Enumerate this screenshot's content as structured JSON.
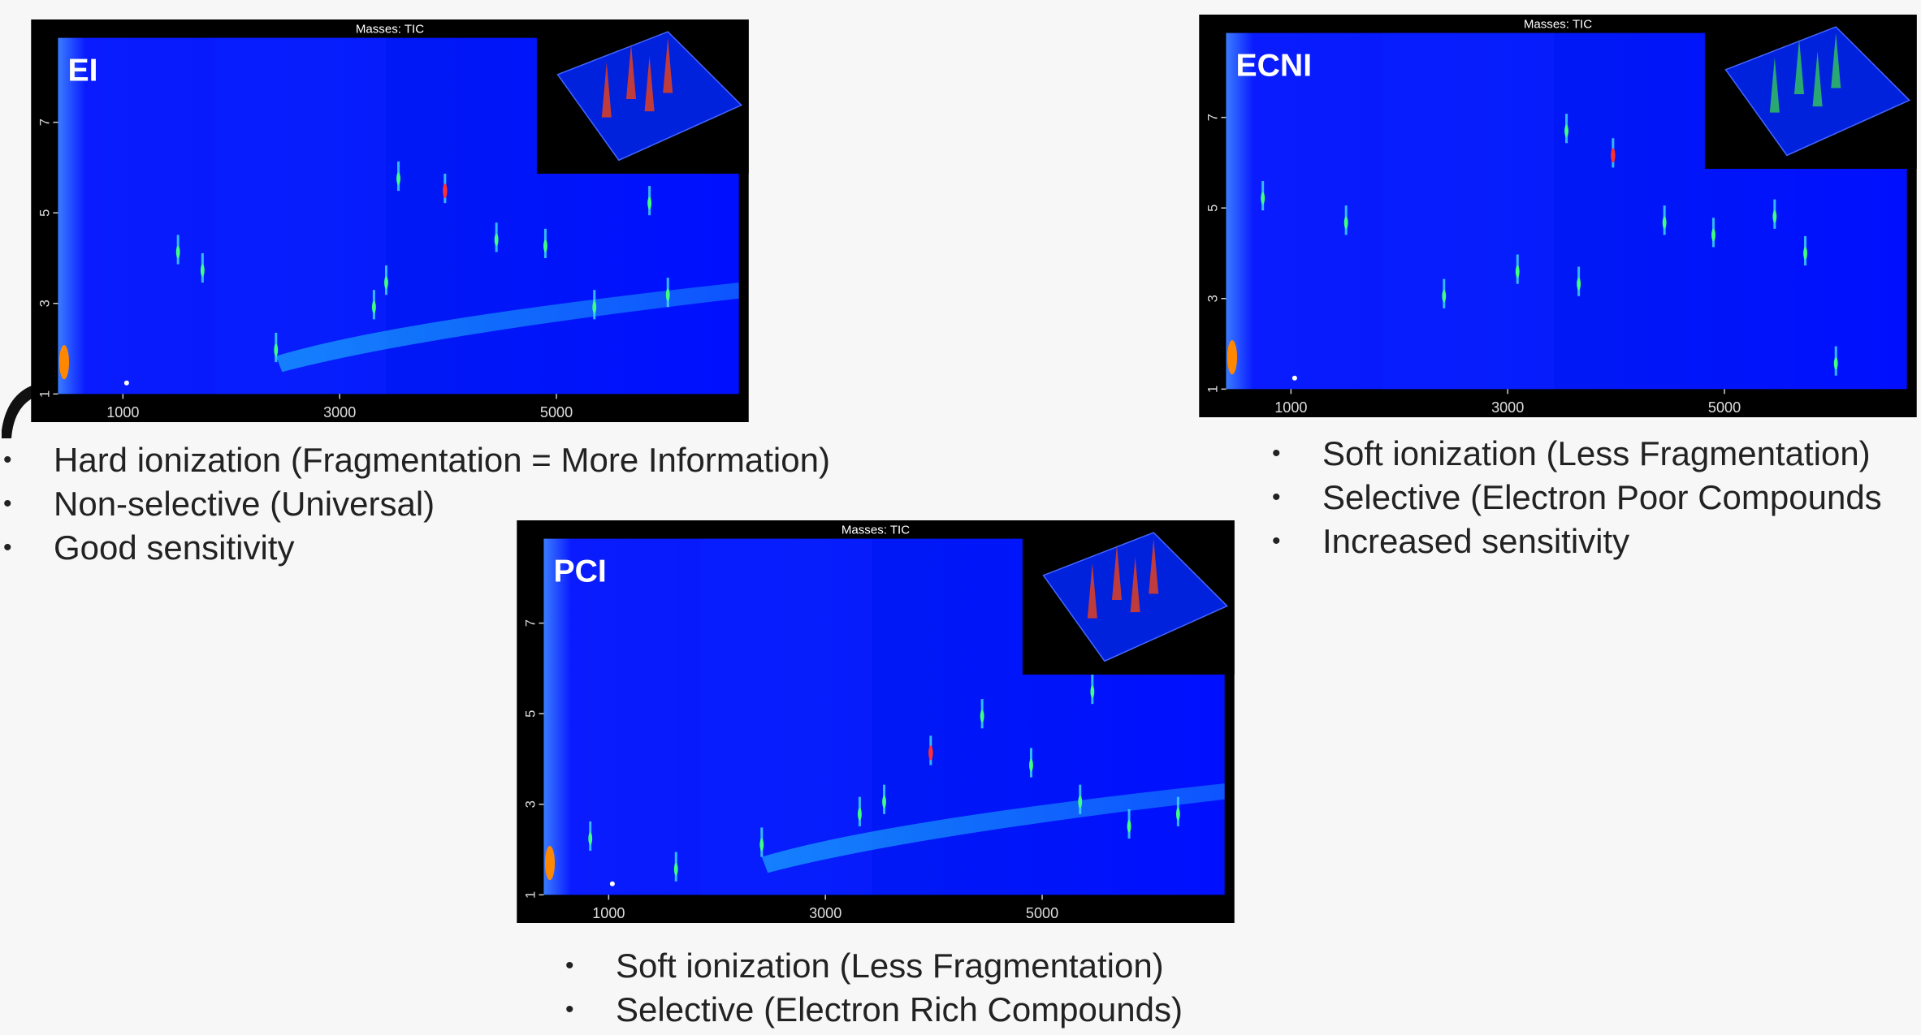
{
  "panels": [
    {
      "header": "Masses: TIC",
      "label": "EI",
      "x_ticks": [
        1000,
        3000,
        5000
      ],
      "y_ticks": [
        1,
        3,
        5,
        7
      ],
      "bullets": [
        "Hard ionization (Fragmentation = More Information)",
        "Non-selective (Universal)",
        "Good sensitivity"
      ]
    },
    {
      "header": "Masses: TIC",
      "label": "ECNI",
      "x_ticks": [
        1000,
        3000,
        5000
      ],
      "y_ticks": [
        1,
        3,
        5,
        7
      ],
      "bullets": [
        "Soft ionization (Less Fragmentation)",
        "Selective (Electron Poor Compounds",
        "Increased sensitivity"
      ]
    },
    {
      "header": "Masses: TIC",
      "label": "PCI",
      "x_ticks": [
        1000,
        3000,
        5000
      ],
      "y_ticks": [
        1,
        3,
        5,
        7
      ],
      "bullets": [
        "Soft ionization (Less Fragmentation)",
        "Selective (Electron Rich Compounds)"
      ]
    }
  ]
}
